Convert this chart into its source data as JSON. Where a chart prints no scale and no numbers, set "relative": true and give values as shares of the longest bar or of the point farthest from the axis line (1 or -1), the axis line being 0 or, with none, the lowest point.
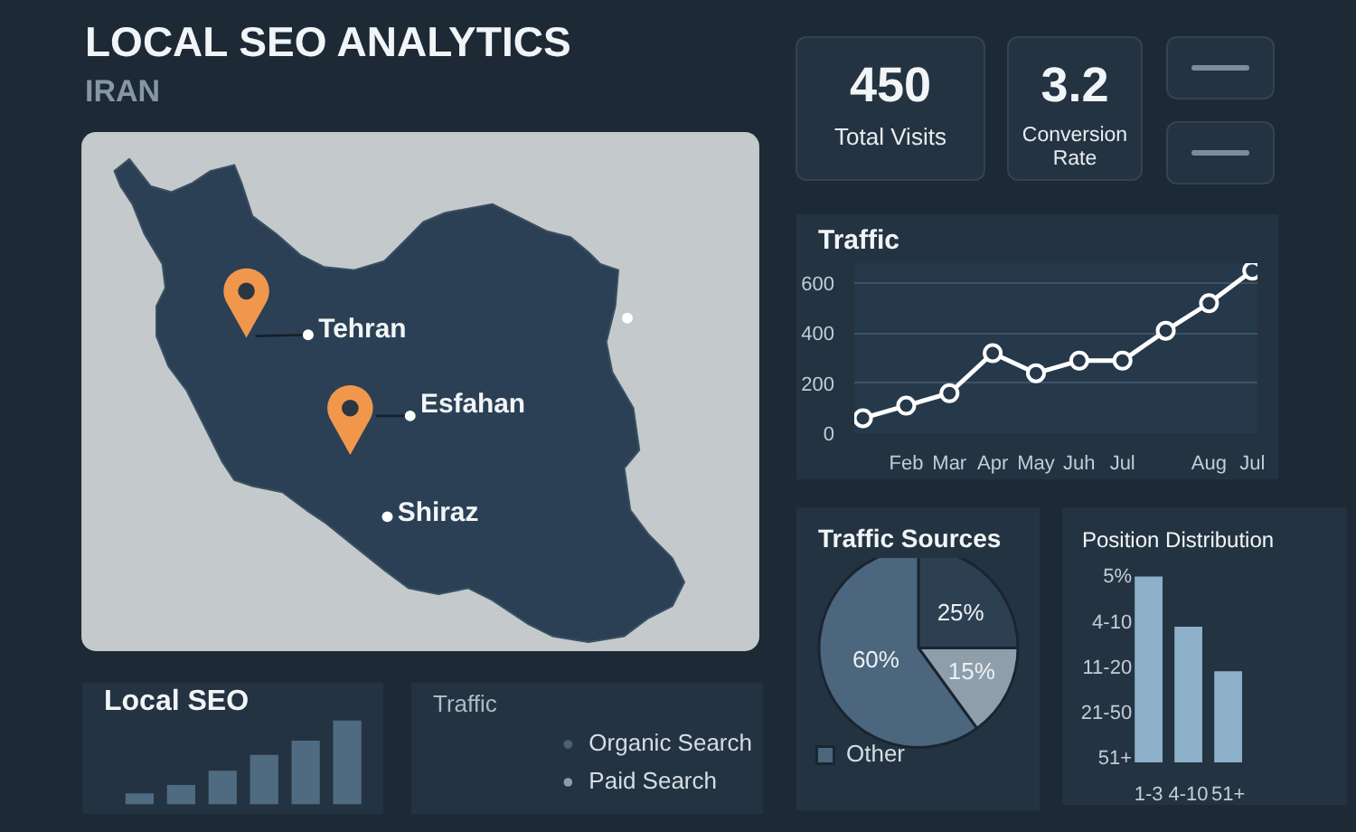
{
  "chart_data": [
    {
      "type": "other",
      "title": "LOCAL SEO ANALYTICS",
      "subtitle": "IRAN",
      "annotations": [
        "Tehran",
        "Esfahan",
        "Shiraz"
      ]
    },
    {
      "type": "other",
      "annotations": [
        "450",
        "Total Visits",
        "3.2",
        "Conversion Rate"
      ]
    },
    {
      "type": "line",
      "title": "Traffic",
      "categories": [
        null,
        "Feb",
        "Mar",
        "Apr",
        "May",
        "Juh",
        "Jul",
        null,
        "Aug",
        "Jul"
      ],
      "values": [
        60,
        110,
        160,
        320,
        240,
        290,
        290,
        410,
        520,
        650
      ],
      "color": "#ffffff",
      "marker": "circle",
      "ylim": [
        0,
        680
      ],
      "yticks": [
        0,
        200,
        400,
        600
      ],
      "grid": "y"
    },
    {
      "type": "pie",
      "title": "Traffic Sources",
      "categories": [
        null,
        null,
        "Other"
      ],
      "values": [
        25,
        15,
        60
      ],
      "colors": [
        "#2d4052",
        "#8f9eab",
        "#4b667d"
      ],
      "value_labels": [
        "25%",
        "15%",
        "60%"
      ],
      "legend": "bottom"
    },
    {
      "type": "bar",
      "title": "Position Distribution",
      "categories": [
        "1-3",
        "4-10",
        "51+"
      ],
      "values": [
        1,
        0.73,
        0.49
      ],
      "relative": true,
      "color": "#8db0c9",
      "annotations": [
        "5%",
        "4-10",
        "11-20",
        "21-50",
        "51+"
      ]
    },
    {
      "type": "bar",
      "title": "Local SEO",
      "categories": [
        null,
        null,
        null,
        null,
        null,
        null
      ],
      "values": [
        0.13,
        0.23,
        0.4,
        0.59,
        0.76,
        1
      ],
      "relative": true,
      "color": "#4f6b81"
    },
    {
      "type": "other",
      "title": "Traffic",
      "series": [
        {
          "name": "Organic Search",
          "color": "#4b6274"
        },
        {
          "name": "Paid Search",
          "color": "#8e9ca8"
        }
      ],
      "legend": "right"
    }
  ]
}
